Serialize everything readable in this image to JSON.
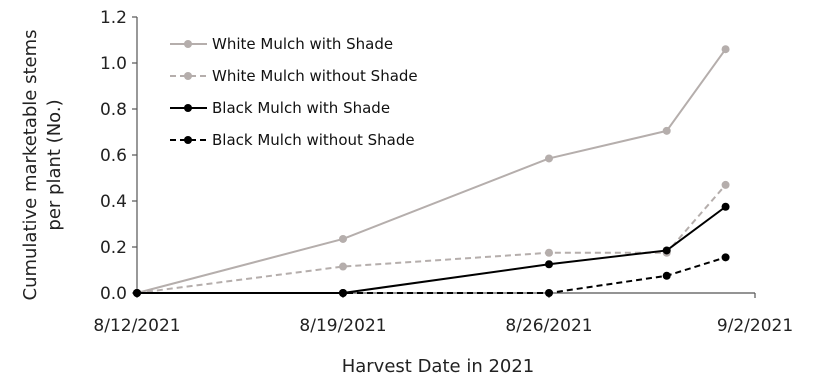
{
  "chart_data": {
    "type": "line",
    "title": "",
    "xlabel": "Harvest Date in 2021",
    "ylabel_lines": [
      "Cumulative marketable stems",
      "per plant (No.)"
    ],
    "x": [
      "2021-08-12",
      "2021-08-19",
      "2021-08-26",
      "2021-08-30",
      "2021-09-01"
    ],
    "xlim": [
      "2021-08-12",
      "2021-09-02"
    ],
    "xticks": [
      "8/12/2021",
      "8/19/2021",
      "8/26/2021",
      "9/2/2021"
    ],
    "ylim": [
      0,
      1.2
    ],
    "yticks": [
      "0.0",
      "0.2",
      "0.4",
      "0.6",
      "0.8",
      "1.0",
      "1.2"
    ],
    "grid": false,
    "legend_position": "top-left",
    "series": [
      {
        "name": "White Mulch with Shade",
        "values": [
          0,
          0.235,
          0.585,
          0.705,
          1.06
        ],
        "color": "#b5aeac",
        "dash": "solid"
      },
      {
        "name": "White Mulch without Shade",
        "values": [
          0,
          0.115,
          0.175,
          0.175,
          0.47
        ],
        "color": "#b5aeac",
        "dash": "dashed"
      },
      {
        "name": "Black Mulch with Shade",
        "values": [
          0,
          0,
          0.125,
          0.185,
          0.375
        ],
        "color": "#000000",
        "dash": "solid"
      },
      {
        "name": "Black Mulch without Shade",
        "values": [
          0,
          0,
          0,
          0.075,
          0.155
        ],
        "color": "#000000",
        "dash": "dashed"
      }
    ]
  }
}
